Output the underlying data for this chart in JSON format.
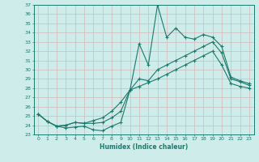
{
  "xlabel": "Humidex (Indice chaleur)",
  "x": [
    0,
    1,
    2,
    3,
    4,
    5,
    6,
    7,
    8,
    9,
    10,
    11,
    12,
    13,
    14,
    15,
    16,
    17,
    18,
    19,
    20,
    21,
    22,
    23
  ],
  "line1": [
    25.2,
    24.4,
    23.9,
    23.7,
    23.8,
    23.9,
    23.5,
    23.4,
    23.9,
    24.3,
    27.8,
    32.8,
    30.5,
    37.0,
    33.5,
    34.5,
    33.5,
    33.3,
    33.8,
    33.5,
    32.5,
    29.2,
    28.8,
    28.5
  ],
  "line2": [
    25.2,
    24.4,
    23.9,
    24.0,
    24.3,
    24.2,
    24.2,
    24.3,
    24.8,
    25.5,
    27.8,
    29.0,
    28.8,
    30.0,
    30.5,
    31.0,
    31.5,
    32.0,
    32.5,
    33.0,
    31.8,
    29.0,
    28.7,
    28.3
  ],
  "line3": [
    25.2,
    24.4,
    23.9,
    24.0,
    24.3,
    24.2,
    24.5,
    24.8,
    25.5,
    26.5,
    27.8,
    28.2,
    28.6,
    29.0,
    29.5,
    30.0,
    30.5,
    31.0,
    31.5,
    32.0,
    30.5,
    28.5,
    28.2,
    28.0
  ],
  "bg_color": "#ceecea",
  "grid_color": "#d4b8b8",
  "line_color": "#1a7a6e",
  "ylim": [
    23,
    37
  ],
  "xlim": [
    -0.5,
    23.5
  ],
  "yticks": [
    23,
    24,
    25,
    26,
    27,
    28,
    29,
    30,
    31,
    32,
    33,
    34,
    35,
    36,
    37
  ],
  "xticks": [
    0,
    1,
    2,
    3,
    4,
    5,
    6,
    7,
    8,
    9,
    10,
    11,
    12,
    13,
    14,
    15,
    16,
    17,
    18,
    19,
    20,
    21,
    22,
    23
  ]
}
